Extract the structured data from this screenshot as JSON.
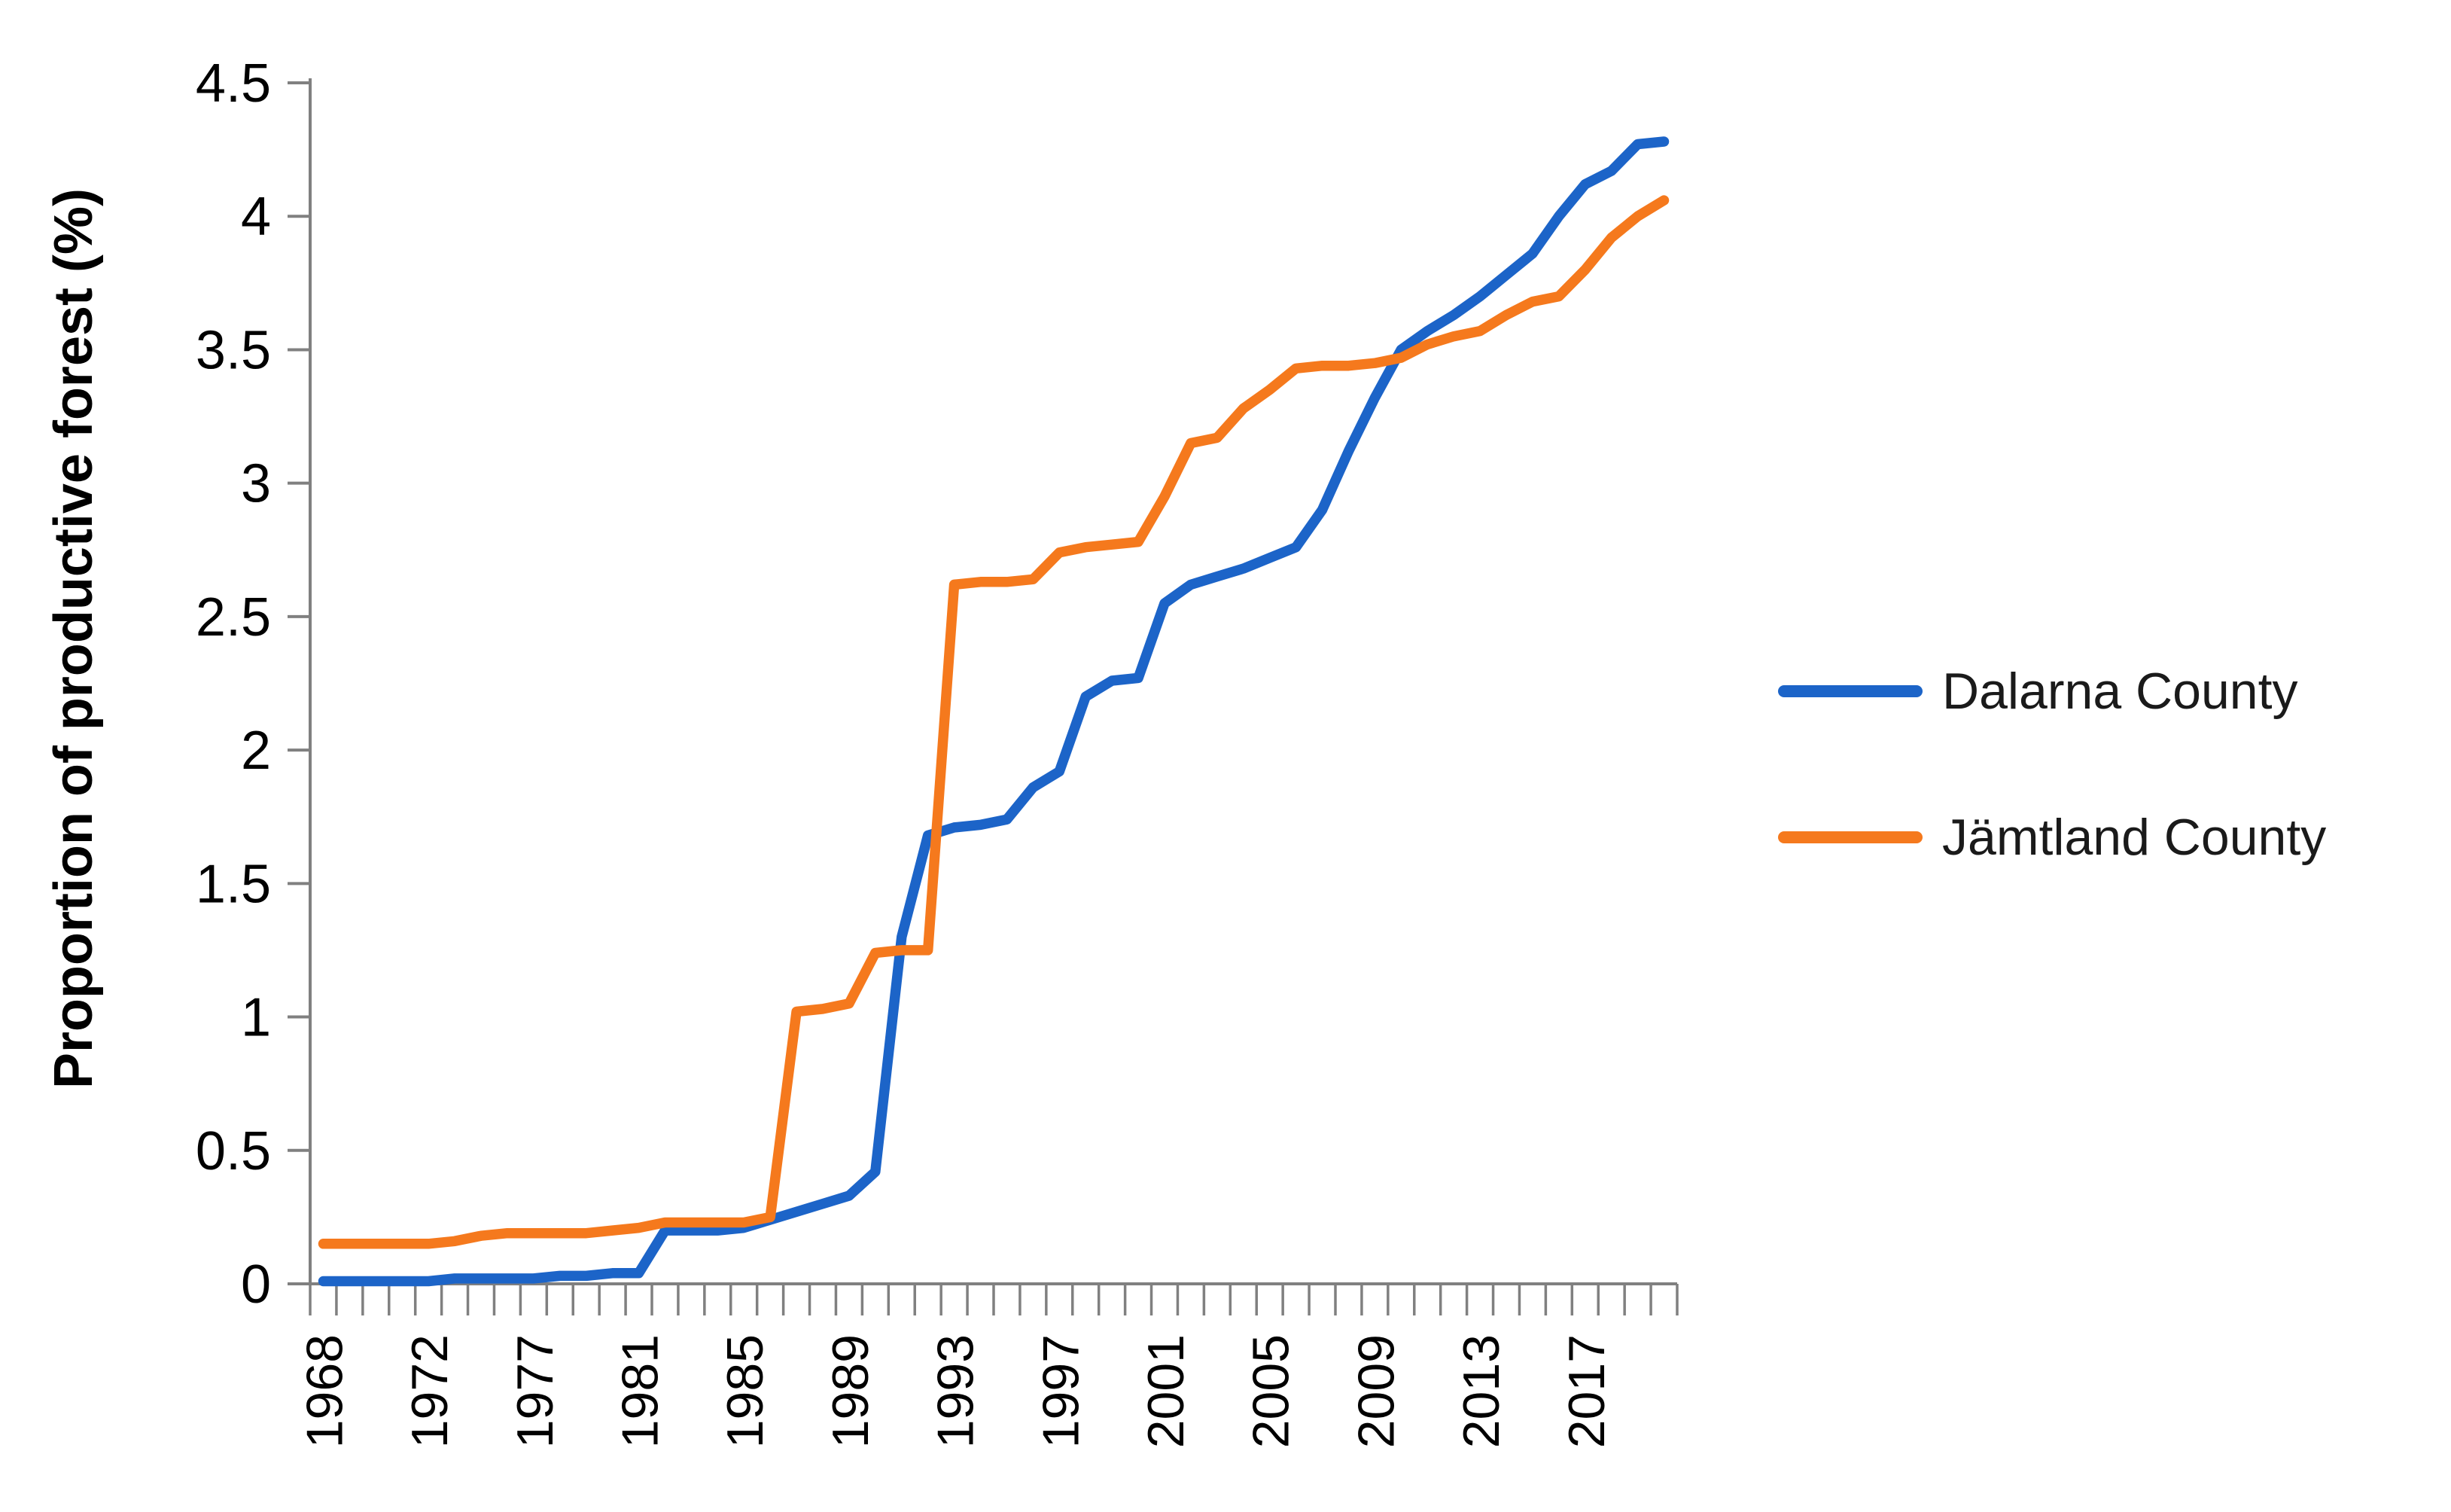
{
  "chart_data": {
    "type": "line",
    "title": "",
    "xlabel": "",
    "ylabel": "Proportion of productive forest (%)",
    "ylim": [
      0,
      4.5
    ],
    "y_ticks": [
      "0",
      "0.5",
      "1",
      "1.5",
      "2",
      "2.5",
      "3",
      "3.5",
      "4",
      "4.5"
    ],
    "x_tick_label_interval": 4,
    "x_tick_labels_shown": [
      "1968",
      "1972",
      "1977",
      "1981",
      "1985",
      "1989",
      "1993",
      "1997",
      "2001",
      "2005",
      "2009",
      "2013",
      "2017"
    ],
    "grid": false,
    "legend_position": "right",
    "axis_color": "#808080",
    "text_color": "#000000",
    "categories": [
      1968,
      1969,
      1970,
      1971,
      1972,
      1974,
      1975,
      1976,
      1977,
      1978,
      1979,
      1980,
      1981,
      1982,
      1983,
      1984,
      1985,
      1986,
      1987,
      1988,
      1989,
      1990,
      1991,
      1992,
      1993,
      1994,
      1995,
      1996,
      1997,
      1998,
      1999,
      2000,
      2001,
      2002,
      2003,
      2004,
      2005,
      2006,
      2007,
      2008,
      2009,
      2010,
      2011,
      2012,
      2013,
      2014,
      2015,
      2016,
      2017,
      2018,
      2019,
      2020
    ],
    "series": [
      {
        "name": "Dalarna County",
        "color": "#1C64C8",
        "values": [
          0.01,
          0.01,
          0.01,
          0.01,
          0.01,
          0.02,
          0.02,
          0.02,
          0.02,
          0.03,
          0.03,
          0.04,
          0.04,
          0.2,
          0.2,
          0.2,
          0.21,
          0.24,
          0.27,
          0.3,
          0.33,
          0.42,
          1.3,
          1.68,
          1.71,
          1.72,
          1.74,
          1.86,
          1.92,
          2.2,
          2.26,
          2.27,
          2.55,
          2.62,
          2.65,
          2.68,
          2.72,
          2.76,
          2.9,
          3.12,
          3.32,
          3.5,
          3.57,
          3.63,
          3.7,
          3.78,
          3.86,
          4.0,
          4.12,
          4.17,
          4.27,
          4.28
        ]
      },
      {
        "name": "Jämtland County",
        "color": "#F5791D",
        "values": [
          0.15,
          0.15,
          0.15,
          0.15,
          0.15,
          0.16,
          0.18,
          0.19,
          0.19,
          0.19,
          0.19,
          0.2,
          0.21,
          0.23,
          0.23,
          0.23,
          0.23,
          0.25,
          1.02,
          1.03,
          1.05,
          1.24,
          1.25,
          1.25,
          2.62,
          2.63,
          2.63,
          2.64,
          2.74,
          2.76,
          2.77,
          2.78,
          2.95,
          3.15,
          3.17,
          3.28,
          3.35,
          3.43,
          3.44,
          3.44,
          3.45,
          3.47,
          3.52,
          3.55,
          3.57,
          3.63,
          3.68,
          3.7,
          3.8,
          3.92,
          4.0,
          4.06
        ]
      }
    ]
  }
}
